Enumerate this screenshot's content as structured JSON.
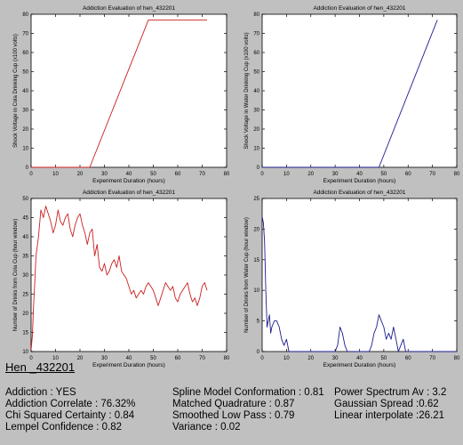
{
  "colors": {
    "background": "#c0c0c0",
    "panel": "#ffffff",
    "cola_series": "#cc2020",
    "water_series": "#1c1c8c"
  },
  "chart_data": [
    {
      "type": "line",
      "title": "Addiction Evaluation of hen_432201",
      "xlabel": "Experiment Duration (hours)",
      "ylabel": "Shock Voltage in Cola Drinking Cup (x100 volts)",
      "xlim": [
        0,
        80
      ],
      "ylim": [
        0,
        80
      ],
      "xticks": [
        0,
        10,
        20,
        30,
        40,
        50,
        60,
        70,
        80
      ],
      "yticks": [
        0,
        10,
        20,
        30,
        40,
        50,
        60,
        70,
        80
      ],
      "grid": false,
      "series": [
        {
          "color": "#cc2020",
          "x": [
            0,
            24,
            48,
            72
          ],
          "y": [
            0,
            0,
            77,
            77
          ]
        }
      ]
    },
    {
      "type": "line",
      "title": "Addiction Evaluation of hen_432201",
      "xlabel": "Experiment Duration (hours)",
      "ylabel": "Shock Voltage in Water Drinking Cup (x100 volts)",
      "xlim": [
        0,
        80
      ],
      "ylim": [
        0,
        80
      ],
      "xticks": [
        0,
        10,
        20,
        30,
        40,
        50,
        60,
        70,
        80
      ],
      "yticks": [
        0,
        10,
        20,
        30,
        40,
        50,
        60,
        70,
        80
      ],
      "grid": false,
      "series": [
        {
          "color": "#1c1c8c",
          "x": [
            0,
            48,
            72
          ],
          "y": [
            0,
            0,
            77
          ]
        }
      ]
    },
    {
      "type": "line",
      "title": "Addiction Evaluation of hen_432201",
      "xlabel": "Experiment Duration (hours)",
      "ylabel": "Number of Drinks from Cola Cup (hour window)",
      "xlim": [
        0,
        80
      ],
      "ylim": [
        10,
        50
      ],
      "xticks": [
        0,
        10,
        20,
        30,
        40,
        50,
        60,
        70,
        80
      ],
      "yticks": [
        10,
        15,
        20,
        25,
        30,
        35,
        40,
        45,
        50
      ],
      "grid": false,
      "series": [
        {
          "color": "#cc2020",
          "x": [
            0,
            0.5,
            1,
            1.5,
            2,
            3,
            4,
            5,
            6,
            7,
            8,
            9,
            10,
            11,
            12,
            13,
            14,
            15,
            16,
            17,
            18,
            19,
            20,
            21,
            22,
            23,
            24,
            25,
            26,
            27,
            28,
            29,
            30,
            31,
            32,
            33,
            34,
            35,
            36,
            37,
            38,
            39,
            40,
            41,
            42,
            43,
            44,
            45,
            46,
            47,
            48,
            49,
            50,
            51,
            52,
            53,
            54,
            55,
            56,
            57,
            58,
            59,
            60,
            61,
            62,
            63,
            64,
            65,
            66,
            67,
            68,
            69,
            70,
            71,
            72
          ],
          "y": [
            10.5,
            14,
            22,
            28,
            35,
            40,
            47,
            45,
            48,
            46,
            44,
            41,
            43,
            47,
            44,
            43,
            45,
            46,
            42,
            40,
            43,
            45,
            46,
            43,
            41,
            38,
            41,
            42,
            35,
            38,
            32,
            31,
            33,
            30,
            31,
            33,
            34,
            32,
            35,
            31,
            30,
            29,
            27,
            25,
            26,
            24,
            25,
            26,
            25,
            27,
            28,
            27,
            26,
            24,
            22,
            24,
            26,
            28,
            27,
            26,
            27,
            24,
            23,
            25,
            26,
            27,
            28,
            25,
            23,
            24,
            22,
            24,
            27,
            28,
            26
          ]
        }
      ]
    },
    {
      "type": "line",
      "title": "Addiction Evaluation of hen_432201",
      "xlabel": "Experiment Duration (hours)",
      "ylabel": "Number of Drinks from Water Cup (hour window)",
      "xlim": [
        0,
        80
      ],
      "ylim": [
        0,
        25
      ],
      "xticks": [
        0,
        10,
        20,
        30,
        40,
        50,
        60,
        70,
        80
      ],
      "yticks": [
        0,
        5,
        10,
        15,
        20,
        25
      ],
      "grid": false,
      "series": [
        {
          "color": "#1c1c8c",
          "x": [
            0,
            0.5,
            1,
            1.5,
            2,
            3,
            3.5,
            4,
            5,
            6,
            7,
            8,
            9,
            10,
            11,
            12,
            13,
            14,
            30,
            31,
            32,
            33,
            34,
            35,
            36,
            44,
            45,
            46,
            47,
            48,
            49,
            50,
            51,
            52,
            53,
            54,
            55,
            56,
            57,
            58,
            59,
            60,
            61,
            80
          ],
          "y": [
            22,
            21,
            18,
            10,
            4,
            6,
            3,
            4,
            5,
            5,
            4,
            2,
            1,
            2,
            0,
            0,
            0,
            0,
            0,
            1,
            4,
            3,
            1,
            0,
            0,
            0,
            1,
            3,
            4,
            6,
            5,
            4,
            2,
            3,
            2,
            4,
            2,
            0,
            1,
            2,
            0,
            0,
            0,
            0
          ]
        }
      ]
    }
  ],
  "results": {
    "hen_id": "Hen _432201",
    "col1": [
      "Addiction : YES",
      "Addiction Correlate : 76.32%",
      "Chi Squared Certainty : 0.84",
      "Lempel Confidence : 0.82"
    ],
    "col2": [
      "Spline Model Conformation : 0.81",
      "Matched Quadrature : 0.87",
      "Smoothed Low Pass : 0.79",
      "Variance : 0.02"
    ],
    "col3": [
      "Power Spectrum Av : 3.2",
      "Gaussian Spread :0.62",
      "Linear interpolate :26.21"
    ]
  }
}
